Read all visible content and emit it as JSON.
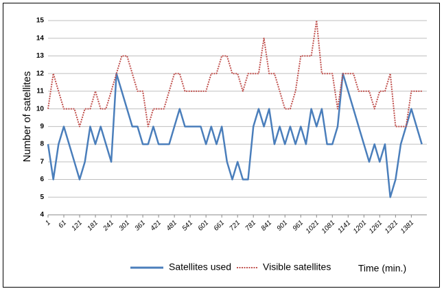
{
  "chart_data": {
    "type": "line",
    "y_label": "Number of satellites",
    "x_label": "Time (min.)",
    "x": [
      1,
      21,
      41,
      61,
      81,
      101,
      121,
      141,
      161,
      181,
      201,
      221,
      241,
      261,
      281,
      301,
      321,
      341,
      361,
      381,
      401,
      421,
      441,
      461,
      481,
      501,
      521,
      541,
      561,
      581,
      601,
      621,
      641,
      661,
      681,
      701,
      721,
      741,
      761,
      781,
      801,
      821,
      841,
      861,
      881,
      901,
      921,
      941,
      961,
      981,
      1001,
      1021,
      1041,
      1061,
      1081,
      1101,
      1121,
      1141,
      1161,
      1181,
      1201,
      1221,
      1241,
      1261,
      1281,
      1301,
      1321,
      1341,
      1361,
      1381,
      1401,
      1421
    ],
    "xlim": [
      1,
      1440
    ],
    "xticks": [
      1,
      61,
      121,
      181,
      241,
      301,
      361,
      421,
      481,
      541,
      601,
      661,
      721,
      781,
      841,
      901,
      961,
      1021,
      1081,
      1141,
      1201,
      1261,
      1321,
      1381
    ],
    "ylim": [
      4,
      15
    ],
    "yticks": [
      4,
      5,
      6,
      7,
      8,
      9,
      10,
      11,
      12,
      13,
      14,
      15
    ],
    "grid": true,
    "legend": "bottom",
    "series": [
      {
        "name": "Satellites used",
        "color": "#4a7ebb",
        "style": "solid",
        "values": [
          8,
          6,
          8,
          9,
          8,
          7,
          6,
          7,
          9,
          8,
          9,
          8,
          7,
          12,
          11,
          10,
          9,
          9,
          8,
          8,
          9,
          8,
          8,
          8,
          9,
          10,
          9,
          9,
          9,
          9,
          8,
          9,
          8,
          9,
          7,
          6,
          7,
          6,
          6,
          9,
          10,
          9,
          10,
          8,
          9,
          8,
          9,
          8,
          9,
          8,
          10,
          9,
          10,
          8,
          8,
          9,
          12,
          11,
          10,
          9,
          8,
          7,
          8,
          7,
          8,
          5,
          6,
          8,
          9,
          10,
          9,
          8
        ]
      },
      {
        "name": "Visible satellites",
        "color": "#c0504d",
        "style": "dotted",
        "values": [
          10,
          12,
          11,
          10,
          10,
          10,
          9,
          10,
          10,
          11,
          10,
          10,
          11,
          12,
          13,
          13,
          12,
          11,
          11,
          9,
          10,
          10,
          10,
          11,
          12,
          12,
          11,
          11,
          11,
          11,
          11,
          12,
          12,
          13,
          13,
          12,
          12,
          11,
          12,
          12,
          12,
          14,
          12,
          12,
          11,
          10,
          10,
          11,
          13,
          13,
          13,
          15,
          12,
          12,
          12,
          10,
          12,
          12,
          12,
          11,
          11,
          11,
          10,
          11,
          11,
          12,
          9,
          9,
          9,
          11,
          11,
          11
        ]
      }
    ]
  }
}
